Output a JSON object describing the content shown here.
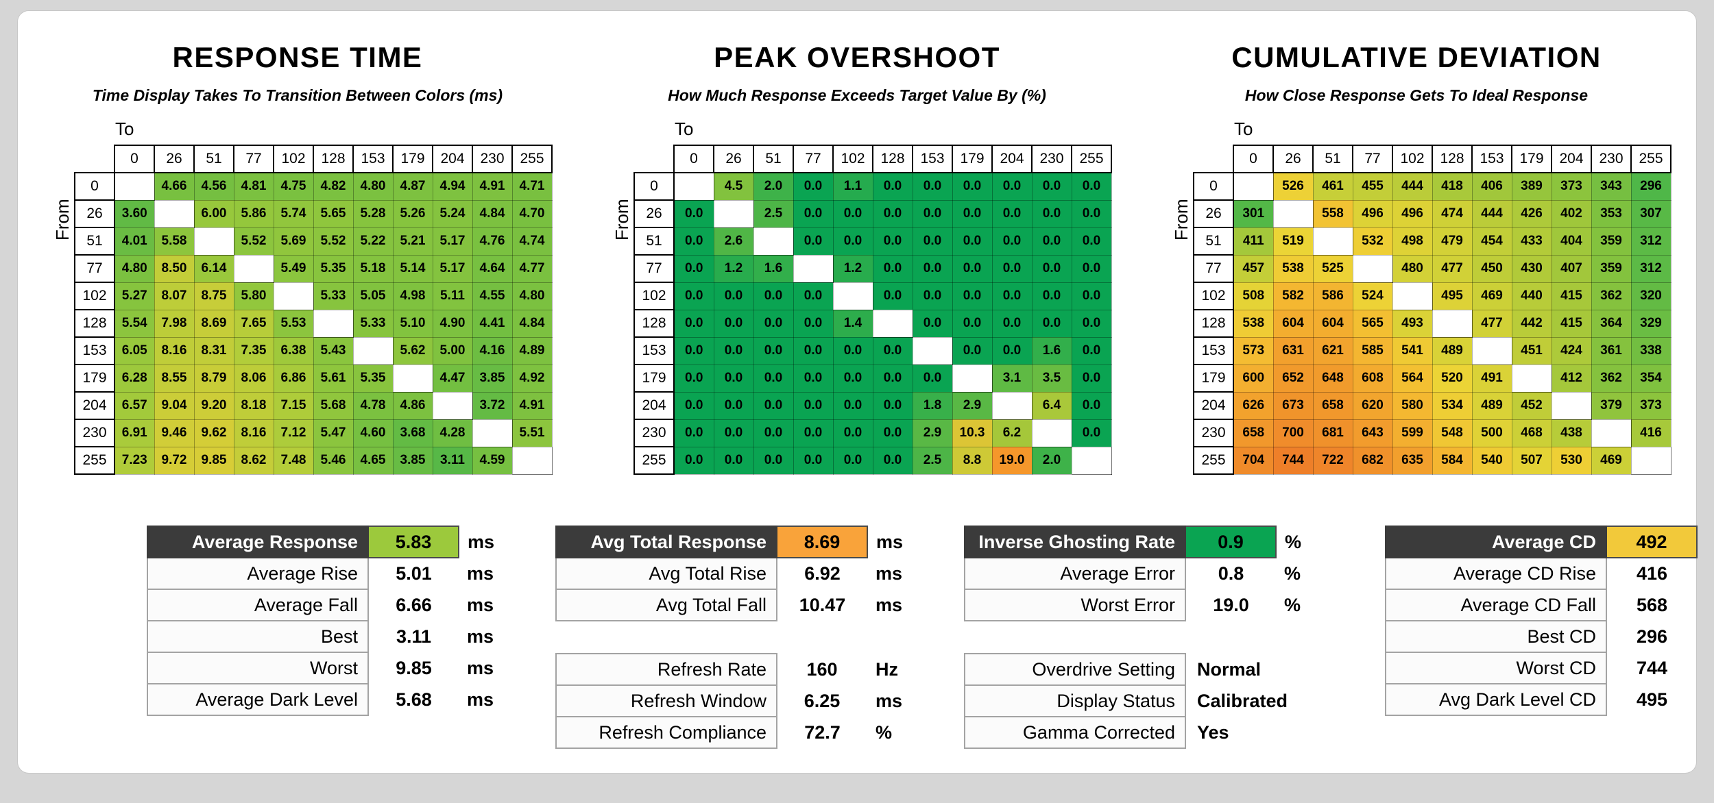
{
  "chart_data": [
    {
      "type": "heatmap",
      "title": "RESPONSE TIME",
      "subtitle": "Time Display Takes To Transition Between Colors (ms)",
      "x_axis_label": "To",
      "y_axis_label": "From",
      "categories": [
        0,
        26,
        51,
        77,
        102,
        128,
        153,
        179,
        204,
        230,
        255
      ],
      "decimals": 2,
      "color_stops": [
        [
          3.0,
          "#55b747"
        ],
        [
          4.5,
          "#74bf41"
        ],
        [
          6.0,
          "#97c83c"
        ],
        [
          7.5,
          "#b5cd3a"
        ],
        [
          10.0,
          "#d9cd37"
        ]
      ],
      "values": [
        [
          null,
          4.66,
          4.56,
          4.81,
          4.75,
          4.82,
          4.8,
          4.87,
          4.94,
          4.91,
          4.71
        ],
        [
          3.6,
          null,
          6.0,
          5.86,
          5.74,
          5.65,
          5.28,
          5.26,
          5.24,
          4.84,
          4.7
        ],
        [
          4.01,
          5.58,
          null,
          5.52,
          5.69,
          5.52,
          5.22,
          5.21,
          5.17,
          4.76,
          4.74
        ],
        [
          4.8,
          8.5,
          6.14,
          null,
          5.49,
          5.35,
          5.18,
          5.14,
          5.17,
          4.64,
          4.77
        ],
        [
          5.27,
          8.07,
          8.75,
          5.8,
          null,
          5.33,
          5.05,
          4.98,
          5.11,
          4.55,
          4.8
        ],
        [
          5.54,
          7.98,
          8.69,
          7.65,
          5.53,
          null,
          5.33,
          5.1,
          4.9,
          4.41,
          4.84
        ],
        [
          6.05,
          8.16,
          8.31,
          7.35,
          6.38,
          5.43,
          null,
          5.62,
          5.0,
          4.16,
          4.89
        ],
        [
          6.28,
          8.55,
          8.79,
          8.06,
          6.86,
          5.61,
          5.35,
          null,
          4.47,
          3.85,
          4.92
        ],
        [
          6.57,
          9.04,
          9.2,
          8.18,
          7.15,
          5.68,
          4.78,
          4.86,
          null,
          3.72,
          4.91
        ],
        [
          6.91,
          9.46,
          9.62,
          8.16,
          7.12,
          5.47,
          4.6,
          3.68,
          4.28,
          null,
          5.51
        ],
        [
          7.23,
          9.72,
          9.85,
          8.62,
          7.48,
          5.46,
          4.65,
          3.85,
          3.11,
          4.59,
          null
        ]
      ]
    },
    {
      "type": "heatmap",
      "title": "PEAK OVERSHOOT",
      "subtitle": "How Much Response Exceeds Target Value By (%)",
      "x_axis_label": "To",
      "y_axis_label": "From",
      "categories": [
        0,
        26,
        51,
        77,
        102,
        128,
        153,
        179,
        204,
        230,
        255
      ],
      "decimals": 1,
      "color_stops": [
        [
          0,
          "#0aa452"
        ],
        [
          1.5,
          "#2fae4c"
        ],
        [
          3,
          "#5cb944"
        ],
        [
          5,
          "#8fc53c"
        ],
        [
          8,
          "#c6cb37"
        ],
        [
          12,
          "#ecc133"
        ],
        [
          19,
          "#f5972b"
        ]
      ],
      "values": [
        [
          null,
          4.5,
          2.0,
          0.0,
          1.1,
          0.0,
          0.0,
          0.0,
          0.0,
          0.0,
          0.0
        ],
        [
          0.0,
          null,
          2.5,
          0.0,
          0.0,
          0.0,
          0.0,
          0.0,
          0.0,
          0.0,
          0.0
        ],
        [
          0.0,
          2.6,
          null,
          0.0,
          0.0,
          0.0,
          0.0,
          0.0,
          0.0,
          0.0,
          0.0
        ],
        [
          0.0,
          1.2,
          1.6,
          null,
          1.2,
          0.0,
          0.0,
          0.0,
          0.0,
          0.0,
          0.0
        ],
        [
          0.0,
          0.0,
          0.0,
          0.0,
          null,
          0.0,
          0.0,
          0.0,
          0.0,
          0.0,
          0.0
        ],
        [
          0.0,
          0.0,
          0.0,
          0.0,
          1.4,
          null,
          0.0,
          0.0,
          0.0,
          0.0,
          0.0
        ],
        [
          0.0,
          0.0,
          0.0,
          0.0,
          0.0,
          0.0,
          null,
          0.0,
          0.0,
          1.6,
          0.0
        ],
        [
          0.0,
          0.0,
          0.0,
          0.0,
          0.0,
          0.0,
          0.0,
          null,
          3.1,
          3.5,
          0.0
        ],
        [
          0.0,
          0.0,
          0.0,
          0.0,
          0.0,
          0.0,
          1.8,
          2.9,
          null,
          6.4,
          0.0
        ],
        [
          0.0,
          0.0,
          0.0,
          0.0,
          0.0,
          0.0,
          2.9,
          10.3,
          6.2,
          null,
          0.0
        ],
        [
          0.0,
          0.0,
          0.0,
          0.0,
          0.0,
          0.0,
          2.5,
          8.8,
          19.0,
          2.0,
          null
        ]
      ]
    },
    {
      "type": "heatmap",
      "title": "CUMULATIVE DEVIATION",
      "subtitle": "How Close Response Gets To Ideal Response",
      "x_axis_label": "To",
      "y_axis_label": "From",
      "categories": [
        0,
        26,
        51,
        77,
        102,
        128,
        153,
        179,
        204,
        230,
        255
      ],
      "decimals": 0,
      "color_stops": [
        [
          296,
          "#4fb748"
        ],
        [
          360,
          "#84c23e"
        ],
        [
          420,
          "#aac93a"
        ],
        [
          470,
          "#cdd037"
        ],
        [
          520,
          "#ecd436"
        ],
        [
          570,
          "#f4bd32"
        ],
        [
          630,
          "#f2a02d"
        ],
        [
          744,
          "#ee7f29"
        ]
      ],
      "values": [
        [
          null,
          526,
          461,
          455,
          444,
          418,
          406,
          389,
          373,
          343,
          296
        ],
        [
          301,
          null,
          558,
          496,
          496,
          474,
          444,
          426,
          402,
          353,
          307
        ],
        [
          411,
          519,
          null,
          532,
          498,
          479,
          454,
          433,
          404,
          359,
          312
        ],
        [
          457,
          538,
          525,
          null,
          480,
          477,
          450,
          430,
          407,
          359,
          312
        ],
        [
          508,
          582,
          586,
          524,
          null,
          495,
          469,
          440,
          415,
          362,
          320
        ],
        [
          538,
          604,
          604,
          565,
          493,
          null,
          477,
          442,
          415,
          364,
          329
        ],
        [
          573,
          631,
          621,
          585,
          541,
          489,
          null,
          451,
          424,
          361,
          338
        ],
        [
          600,
          652,
          648,
          608,
          564,
          520,
          491,
          null,
          412,
          362,
          354
        ],
        [
          626,
          673,
          658,
          620,
          580,
          534,
          489,
          452,
          null,
          379,
          373
        ],
        [
          658,
          700,
          681,
          643,
          599,
          548,
          500,
          468,
          438,
          null,
          416
        ],
        [
          704,
          744,
          722,
          682,
          635,
          584,
          540,
          507,
          530,
          469,
          null
        ]
      ]
    }
  ],
  "summaries": [
    {
      "tables": [
        {
          "rows": [
            {
              "label": "Average Response",
              "value": "5.83",
              "unit": "ms",
              "dark": true,
              "highlight": "#9cc93c"
            },
            {
              "label": "Average Rise",
              "value": "5.01",
              "unit": "ms"
            },
            {
              "label": "Average Fall",
              "value": "6.66",
              "unit": "ms"
            },
            {
              "label": "Best",
              "value": "3.11",
              "unit": "ms"
            },
            {
              "label": "Worst",
              "value": "9.85",
              "unit": "ms"
            },
            {
              "label": "Average Dark Level",
              "value": "5.68",
              "unit": "ms"
            }
          ]
        }
      ]
    },
    {
      "tables": [
        {
          "rows": [
            {
              "label": "Avg Total Response",
              "value": "8.69",
              "unit": "ms",
              "dark": true,
              "highlight": "#f9a33a"
            },
            {
              "label": "Avg Total Rise",
              "value": "6.92",
              "unit": "ms"
            },
            {
              "label": "Avg Total Fall",
              "value": "10.47",
              "unit": "ms"
            }
          ]
        },
        {
          "rows": [
            {
              "label": "Refresh Rate",
              "value": "160",
              "unit": "Hz"
            },
            {
              "label": "Refresh Window",
              "value": "6.25",
              "unit": "ms"
            },
            {
              "label": "Refresh Compliance",
              "value": "72.7",
              "unit": "%"
            }
          ]
        }
      ]
    },
    {
      "tables": [
        {
          "rows": [
            {
              "label": "Inverse Ghosting Rate",
              "value": "0.9",
              "unit": "%",
              "dark": true,
              "highlight": "#0aa452"
            },
            {
              "label": "Average Error",
              "value": "0.8",
              "unit": "%"
            },
            {
              "label": "Worst Error",
              "value": "19.0",
              "unit": "%"
            }
          ]
        },
        {
          "rows": [
            {
              "label": "Overdrive Setting",
              "value": "Normal",
              "unit": "",
              "align": "left"
            },
            {
              "label": "Display Status",
              "value": "Calibrated",
              "unit": "",
              "align": "left"
            },
            {
              "label": "Gamma Corrected",
              "value": "Yes",
              "unit": "",
              "align": "left"
            }
          ]
        }
      ]
    },
    {
      "tables": [
        {
          "rows": [
            {
              "label": "Average CD",
              "value": "492",
              "unit": "",
              "dark": true,
              "highlight": "#f2c93a"
            },
            {
              "label": "Average CD Rise",
              "value": "416",
              "unit": ""
            },
            {
              "label": "Average CD Fall",
              "value": "568",
              "unit": ""
            },
            {
              "label": "Best CD",
              "value": "296",
              "unit": ""
            },
            {
              "label": "Worst CD",
              "value": "744",
              "unit": ""
            },
            {
              "label": "Avg Dark Level CD",
              "value": "495",
              "unit": ""
            }
          ]
        }
      ]
    }
  ]
}
